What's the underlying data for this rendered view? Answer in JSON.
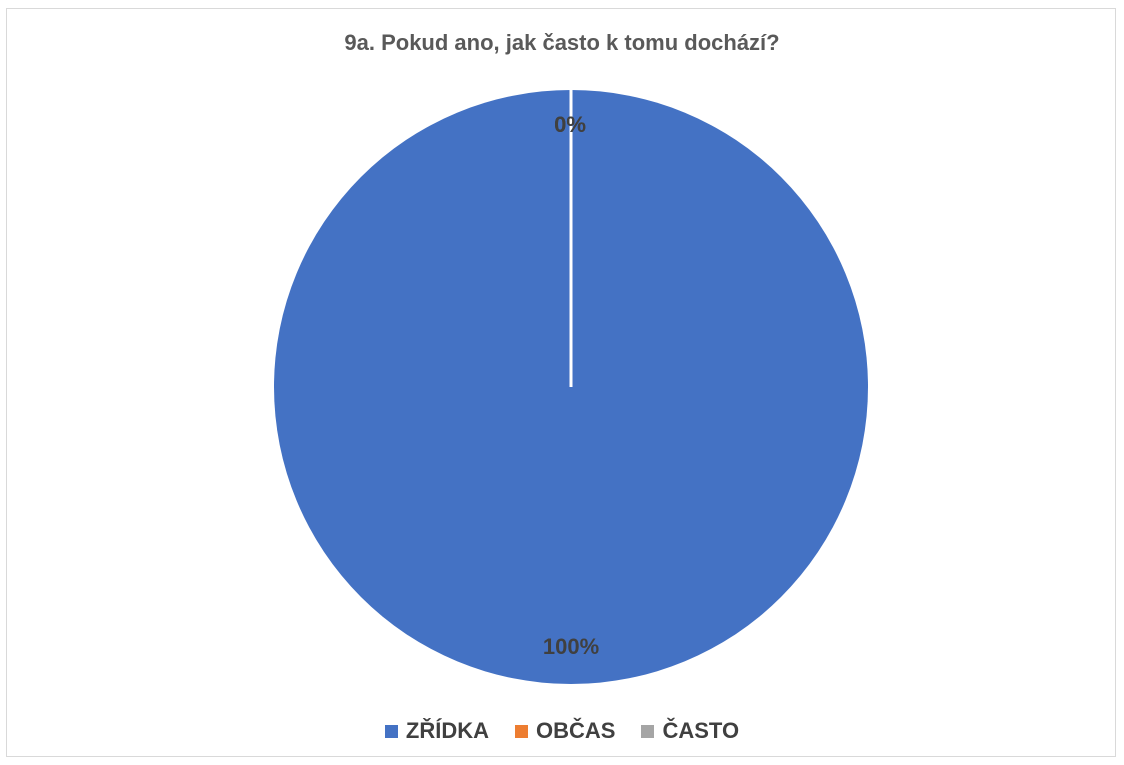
{
  "chart_data": {
    "type": "pie",
    "title": "9a. Pokud ano, jak často k tomu dochází?",
    "categories": [
      "ZŘÍDKA",
      "OBČAS",
      "ČASTO"
    ],
    "values": [
      100,
      0,
      0
    ],
    "data_labels": [
      "100%",
      "0%",
      "0%"
    ],
    "colors": [
      "#4472C4",
      "#ED7D31",
      "#A5A5A5"
    ],
    "legend_position": "bottom"
  }
}
